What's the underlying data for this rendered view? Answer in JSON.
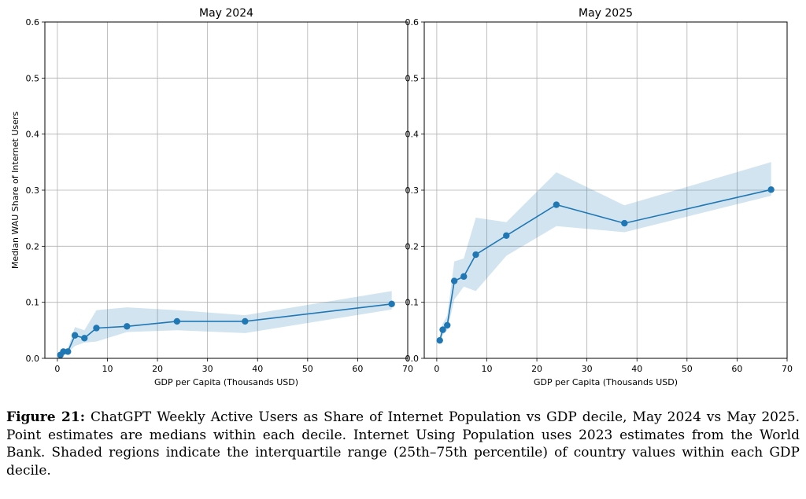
{
  "chart_data": [
    {
      "type": "line",
      "title": "May 2024",
      "xlabel": "GDP per Capita (Thousands USD)",
      "ylabel": "Median WAU Share of Internet Users",
      "xlim": [
        -2.5,
        70
      ],
      "ylim": [
        0,
        0.6
      ],
      "xticks": [
        0,
        10,
        20,
        30,
        40,
        50,
        60,
        70
      ],
      "yticks": [
        0.0,
        0.1,
        0.2,
        0.3,
        0.4,
        0.5,
        0.6
      ],
      "grid": true,
      "color": "#1f77b4",
      "series": [
        {
          "x": [
            0.6,
            1.2,
            2.1,
            3.5,
            5.4,
            7.8,
            13.9,
            23.9,
            37.5,
            66.8
          ],
          "y": [
            0.006,
            0.012,
            0.012,
            0.041,
            0.036,
            0.054,
            0.057,
            0.066,
            0.066,
            0.097
          ],
          "q25": [
            0.004,
            0.008,
            0.01,
            0.022,
            0.028,
            0.03,
            0.047,
            0.05,
            0.045,
            0.087
          ],
          "q75": [
            0.009,
            0.016,
            0.018,
            0.056,
            0.05,
            0.086,
            0.091,
            0.086,
            0.077,
            0.12
          ]
        }
      ]
    },
    {
      "type": "line",
      "title": "May 2025",
      "xlabel": "GDP per Capita (Thousands USD)",
      "ylabel": "",
      "xlim": [
        -2.5,
        70
      ],
      "ylim": [
        0,
        0.6
      ],
      "xticks": [
        0,
        10,
        20,
        30,
        40,
        50,
        60,
        70
      ],
      "yticks": [
        0.0,
        0.1,
        0.2,
        0.3,
        0.4,
        0.5,
        0.6
      ],
      "grid": true,
      "color": "#1f77b4",
      "series": [
        {
          "x": [
            0.6,
            1.2,
            2.1,
            3.5,
            5.4,
            7.8,
            13.9,
            23.9,
            37.5,
            66.8
          ],
          "y": [
            0.032,
            0.051,
            0.059,
            0.138,
            0.146,
            0.185,
            0.219,
            0.274,
            0.241,
            0.301
          ],
          "q25": [
            0.028,
            0.042,
            0.05,
            0.105,
            0.128,
            0.12,
            0.183,
            0.236,
            0.225,
            0.29
          ],
          "q75": [
            0.04,
            0.062,
            0.076,
            0.173,
            0.178,
            0.251,
            0.243,
            0.332,
            0.273,
            0.35
          ]
        }
      ]
    }
  ],
  "caption": {
    "label": "Figure 21:",
    "text": " ChatGPT Weekly Active Users as Share of Internet Population vs GDP decile, May 2024 vs May 2025. Point estimates are medians within each decile. Internet Using Population uses 2023 estimates from the World Bank. Shaded regions indicate the interquartile range (25th–75th percentile) of country values within each GDP decile."
  }
}
